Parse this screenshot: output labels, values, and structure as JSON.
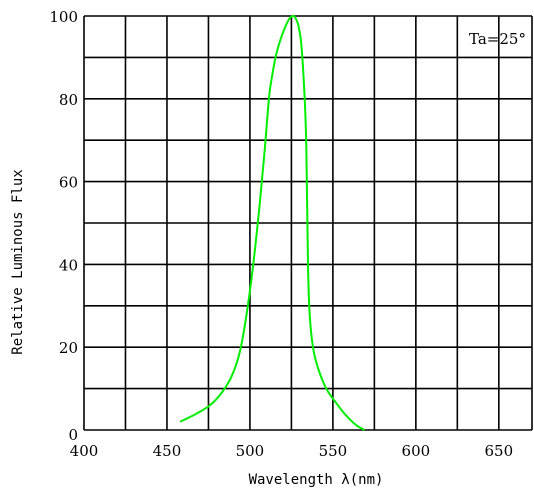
{
  "chart_data": {
    "type": "line",
    "title": "",
    "xlabel": "Wavelength λ(nm)",
    "ylabel": "Relative Luminous Flux",
    "annotation": "Ta=25°",
    "xlim": [
      400,
      670
    ],
    "ylim": [
      0,
      100
    ],
    "x_ticks": [
      "400",
      "450",
      "500",
      "550",
      "600",
      "650"
    ],
    "y_ticks": [
      "0",
      "20",
      "40",
      "60",
      "80",
      "100"
    ],
    "grid": true,
    "grid_v_step": 25,
    "grid_h_step": 10,
    "series": [
      {
        "color": "#00ee00",
        "x": [
          458,
          468,
          476,
          483,
          489,
          494,
          498,
          502,
          506,
          509,
          511,
          512,
          514,
          516,
          519,
          522,
          524,
          526,
          527,
          529,
          531,
          533,
          534,
          535,
          536,
          538,
          541,
          546,
          552,
          558,
          564,
          569
        ],
        "y": [
          2,
          4,
          6,
          9,
          13,
          19,
          28,
          40,
          55,
          68,
          78,
          82,
          87,
          91,
          95,
          98,
          99.5,
          100,
          99.8,
          98,
          93,
          80,
          68,
          40,
          28,
          20,
          15,
          10,
          6.5,
          3.5,
          1.2,
          0
        ]
      }
    ]
  }
}
